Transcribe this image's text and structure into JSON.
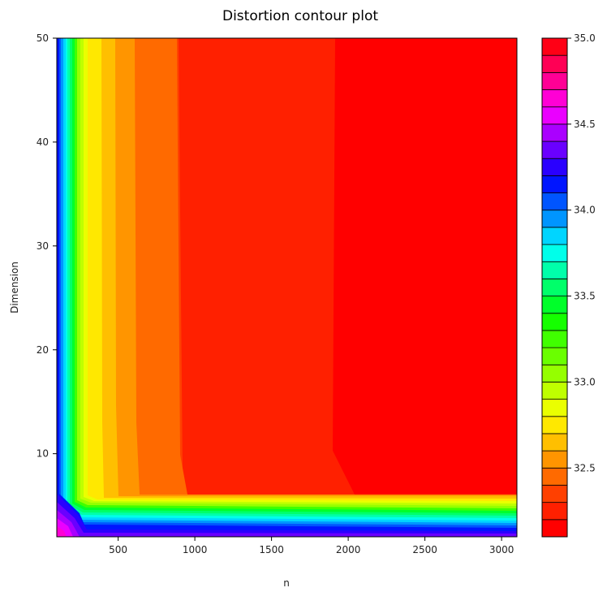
{
  "chart_data": {
    "type": "heatmap",
    "subtype": "filled-contour",
    "title": "Distortion contour plot",
    "xlabel": "n",
    "ylabel": "Dimension",
    "xlim": [
      100,
      3100
    ],
    "ylim": [
      2,
      50
    ],
    "x_ticks": [
      500,
      1000,
      1500,
      2000,
      2500,
      3000
    ],
    "y_ticks": [
      10,
      20,
      30,
      40,
      50
    ],
    "colorbar": {
      "range": [
        32.1,
        35.0
      ],
      "ticks": [
        32.5,
        33.0,
        33.5,
        34.0,
        34.5,
        35.0
      ],
      "tick_labels": [
        "32.5",
        "33.0",
        "33.5",
        "34.0",
        "34.5",
        "35.0"
      ],
      "levels": [
        32.1,
        32.2,
        32.3,
        32.4,
        32.5,
        32.6,
        32.7,
        32.8,
        32.9,
        33.0,
        33.1,
        33.2,
        33.3,
        33.4,
        33.5,
        33.6,
        33.7,
        33.8,
        33.9,
        34.0,
        34.1,
        34.2,
        34.3,
        34.4,
        34.5,
        34.6,
        34.7,
        34.8,
        34.9,
        35.0
      ],
      "colors": [
        "#ff0000",
        "#ff2000",
        "#ff4000",
        "#ff6a00",
        "#ff9500",
        "#ffbf00",
        "#ffe800",
        "#eaff00",
        "#bfff00",
        "#95ff00",
        "#6aff00",
        "#40ff00",
        "#15ff00",
        "#00ff2a",
        "#00ff6a",
        "#00ffaa",
        "#00ffea",
        "#00d5ff",
        "#0095ff",
        "#0055ff",
        "#0015ff",
        "#2a00ff",
        "#6a00ff",
        "#aa00ff",
        "#ea00ff",
        "#ff00d5",
        "#ff0095",
        "#ff0055",
        "#ff0015"
      ]
    },
    "regions": [
      {
        "level": 32.15,
        "n_range": [
          1950,
          3100
        ],
        "dim_range": [
          6,
          50
        ]
      },
      {
        "level": 32.25,
        "n_range": [
          900,
          1950
        ],
        "dim_range": [
          6,
          50
        ]
      },
      {
        "level": 32.35,
        "n_range": [
          620,
          900
        ],
        "dim_range": [
          6,
          50
        ]
      },
      {
        "level": 32.45,
        "n_range": [
          480,
          620
        ],
        "dim_range": [
          6,
          50
        ]
      },
      {
        "level": 32.55,
        "n_range": [
          380,
          480
        ],
        "dim_range": [
          6,
          50
        ]
      }
    ]
  }
}
